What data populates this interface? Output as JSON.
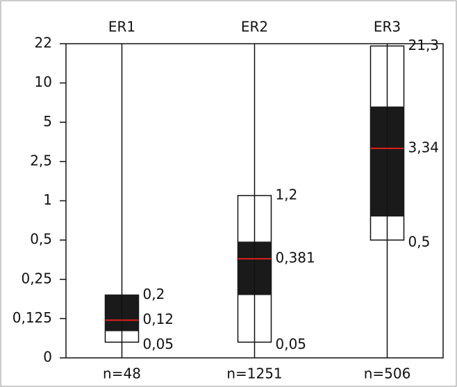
{
  "chart_data": {
    "type": "box",
    "categories": [
      "ER1",
      "ER2",
      "ER3"
    ],
    "counts": [
      "n=48",
      "n=1251",
      "n=506"
    ],
    "ylim": [
      0,
      22
    ],
    "yticks": [
      0,
      {
        "value": 0.125,
        "label": "0,125"
      },
      {
        "value": 0.25,
        "label": "0,25"
      },
      {
        "value": 0.5,
        "label": "0,5"
      },
      1,
      {
        "value": 2.5,
        "label": "2,5"
      },
      5,
      10,
      22
    ],
    "box_color": "#1a1a1a",
    "median_color": "#e0201b",
    "boxes": [
      {
        "low": 0.05,
        "q1": 0.085,
        "median": 0.12,
        "q3": 0.2,
        "high": 0.2,
        "value_labels": {
          "low": "0,05",
          "median": "0,12",
          "high": "0,2"
        }
      },
      {
        "low": 0.05,
        "q1": 0.2,
        "median": 0.381,
        "q3": 0.49,
        "high": 1.2,
        "value_labels": {
          "low": "0,05",
          "median": "0,381",
          "high": "1,2"
        }
      },
      {
        "low": 0.5,
        "q1": 0.8,
        "median": 3.34,
        "q3": 7,
        "high": 21.3,
        "value_labels": {
          "low": "0,5",
          "median": "3,34",
          "high": "21,3"
        }
      }
    ]
  }
}
